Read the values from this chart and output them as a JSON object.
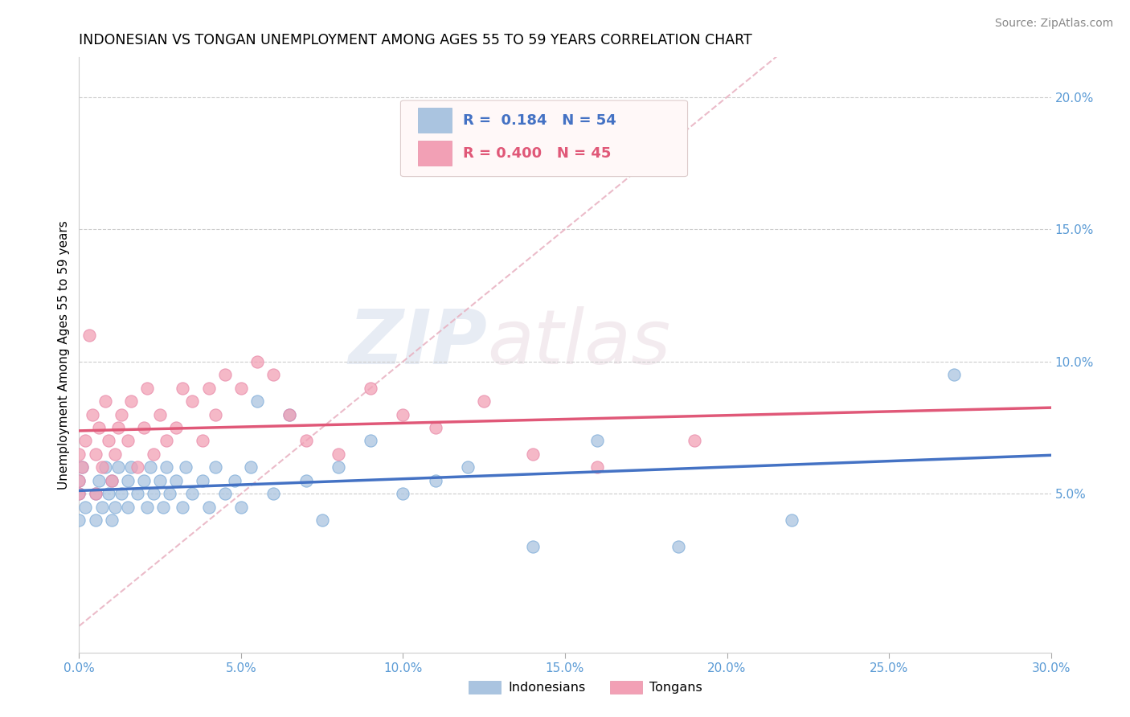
{
  "title": "INDONESIAN VS TONGAN UNEMPLOYMENT AMONG AGES 55 TO 59 YEARS CORRELATION CHART",
  "source": "Source: ZipAtlas.com",
  "ylabel": "Unemployment Among Ages 55 to 59 years",
  "xlim": [
    0.0,
    0.3
  ],
  "ylim": [
    -0.01,
    0.215
  ],
  "xticks": [
    0.0,
    0.05,
    0.1,
    0.15,
    0.2,
    0.25,
    0.3
  ],
  "xticklabels": [
    "0.0%",
    "5.0%",
    "10.0%",
    "15.0%",
    "20.0%",
    "25.0%",
    "30.0%"
  ],
  "yticks": [
    0.05,
    0.1,
    0.15,
    0.2
  ],
  "yticklabels": [
    "5.0%",
    "10.0%",
    "15.0%",
    "20.0%"
  ],
  "legend_r_blue": "0.184",
  "legend_n_blue": "54",
  "legend_r_pink": "0.400",
  "legend_n_pink": "45",
  "blue_color": "#aac4e0",
  "pink_color": "#f2a0b5",
  "blue_line_color": "#4472c4",
  "pink_line_color": "#e05878",
  "diagonal_color": "#e8b0c0",
  "watermark_zip": "ZIP",
  "watermark_atlas": "atlas",
  "indonesian_x": [
    0.0,
    0.0,
    0.0,
    0.001,
    0.002,
    0.005,
    0.005,
    0.006,
    0.007,
    0.008,
    0.009,
    0.01,
    0.01,
    0.011,
    0.012,
    0.013,
    0.015,
    0.015,
    0.016,
    0.018,
    0.02,
    0.021,
    0.022,
    0.023,
    0.025,
    0.026,
    0.027,
    0.028,
    0.03,
    0.032,
    0.033,
    0.035,
    0.038,
    0.04,
    0.042,
    0.045,
    0.048,
    0.05,
    0.053,
    0.055,
    0.06,
    0.065,
    0.07,
    0.075,
    0.08,
    0.09,
    0.1,
    0.11,
    0.12,
    0.14,
    0.16,
    0.185,
    0.22,
    0.27
  ],
  "indonesian_y": [
    0.05,
    0.055,
    0.04,
    0.06,
    0.045,
    0.05,
    0.04,
    0.055,
    0.045,
    0.06,
    0.05,
    0.055,
    0.04,
    0.045,
    0.06,
    0.05,
    0.045,
    0.055,
    0.06,
    0.05,
    0.055,
    0.045,
    0.06,
    0.05,
    0.055,
    0.045,
    0.06,
    0.05,
    0.055,
    0.045,
    0.06,
    0.05,
    0.055,
    0.045,
    0.06,
    0.05,
    0.055,
    0.045,
    0.06,
    0.085,
    0.05,
    0.08,
    0.055,
    0.04,
    0.06,
    0.07,
    0.05,
    0.055,
    0.06,
    0.03,
    0.07,
    0.03,
    0.04,
    0.095
  ],
  "tongan_x": [
    0.0,
    0.0,
    0.0,
    0.001,
    0.002,
    0.003,
    0.004,
    0.005,
    0.005,
    0.006,
    0.007,
    0.008,
    0.009,
    0.01,
    0.011,
    0.012,
    0.013,
    0.015,
    0.016,
    0.018,
    0.02,
    0.021,
    0.023,
    0.025,
    0.027,
    0.03,
    0.032,
    0.035,
    0.038,
    0.04,
    0.042,
    0.045,
    0.05,
    0.055,
    0.06,
    0.065,
    0.07,
    0.08,
    0.09,
    0.1,
    0.11,
    0.125,
    0.14,
    0.16,
    0.19
  ],
  "tongan_y": [
    0.05,
    0.055,
    0.065,
    0.06,
    0.07,
    0.11,
    0.08,
    0.05,
    0.065,
    0.075,
    0.06,
    0.085,
    0.07,
    0.055,
    0.065,
    0.075,
    0.08,
    0.07,
    0.085,
    0.06,
    0.075,
    0.09,
    0.065,
    0.08,
    0.07,
    0.075,
    0.09,
    0.085,
    0.07,
    0.09,
    0.08,
    0.095,
    0.09,
    0.1,
    0.095,
    0.08,
    0.07,
    0.065,
    0.09,
    0.08,
    0.075,
    0.085,
    0.065,
    0.06,
    0.07
  ]
}
